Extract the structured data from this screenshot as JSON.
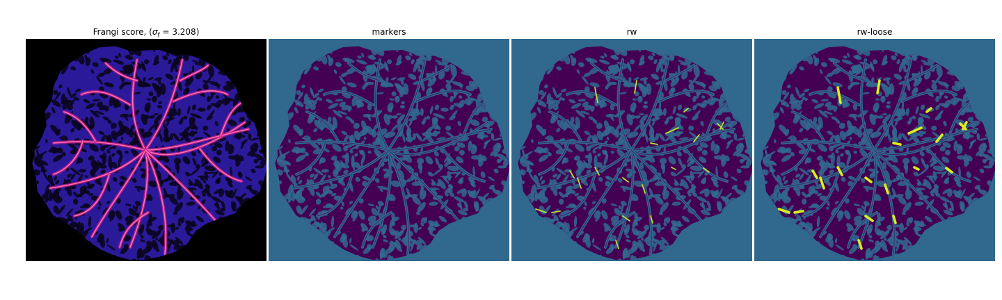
{
  "figure": {
    "panels": [
      {
        "id": "frangi",
        "title_prefix": "Frangi score, (",
        "title_symbol": "σ",
        "title_sub": "f",
        "title_suffix": " = 3.208)",
        "background": "#000000",
        "fill": "#2a1a9a",
        "texture": "#0b0620",
        "vessel_color": "#ff6fb0",
        "vessel_glow": "#c21e8a"
      },
      {
        "id": "markers",
        "title": "markers",
        "background": "#31688e",
        "fill": "#440154",
        "texture": "#31688e",
        "vessel_color": "#31688e"
      },
      {
        "id": "rw",
        "title": "rw",
        "background": "#31688e",
        "fill": "#440154",
        "texture": "#31688e",
        "vessel_color": "#31688e",
        "highlight": "#b8e22f"
      },
      {
        "id": "rw-loose",
        "title": "rw-loose",
        "background": "#31688e",
        "fill": "#440154",
        "texture": "#31688e",
        "vessel_color": "#31688e",
        "highlight": "#d9f01a"
      }
    ]
  }
}
